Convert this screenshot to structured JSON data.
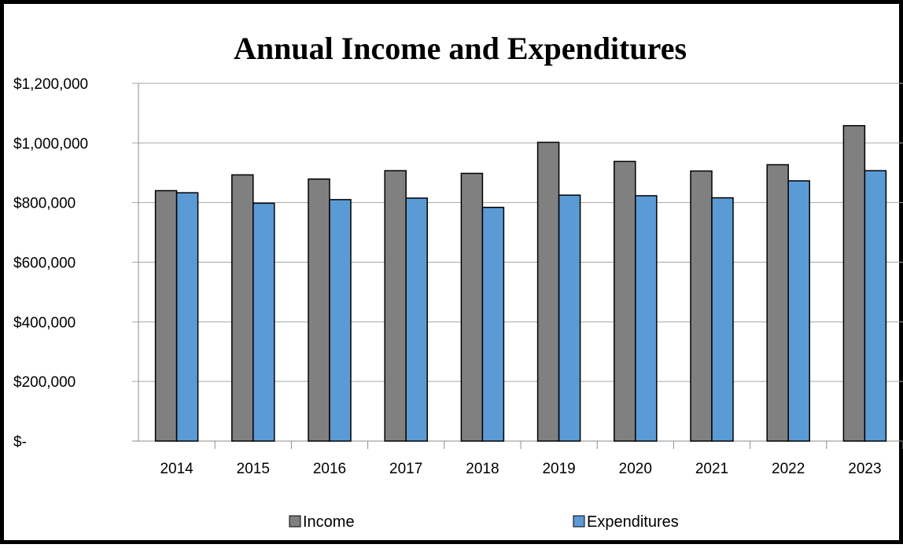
{
  "chart_data": {
    "type": "bar",
    "title": "Annual Income and Expenditures",
    "xlabel": "",
    "ylabel": "",
    "categories": [
      "2014",
      "2015",
      "2016",
      "2017",
      "2018",
      "2019",
      "2020",
      "2021",
      "2022",
      "2023"
    ],
    "series": [
      {
        "name": "Income",
        "color": "#808080",
        "values": [
          840000,
          893000,
          879000,
          907000,
          898000,
          1002000,
          938000,
          906000,
          927000,
          1058000
        ]
      },
      {
        "name": "Expenditures",
        "color": "#5b9bd5",
        "values": [
          833000,
          798000,
          810000,
          815000,
          784000,
          825000,
          823000,
          816000,
          873000,
          907000
        ]
      }
    ],
    "ylim": [
      0,
      1200000
    ],
    "yticks": [
      0,
      200000,
      400000,
      600000,
      800000,
      1000000,
      1200000
    ],
    "ytick_labels": [
      "$-",
      "$200,000",
      "$400,000",
      "$600,000",
      "$800,000",
      "$1,000,000",
      "$1,200,000"
    ],
    "grid": true,
    "legend_position": "bottom"
  }
}
